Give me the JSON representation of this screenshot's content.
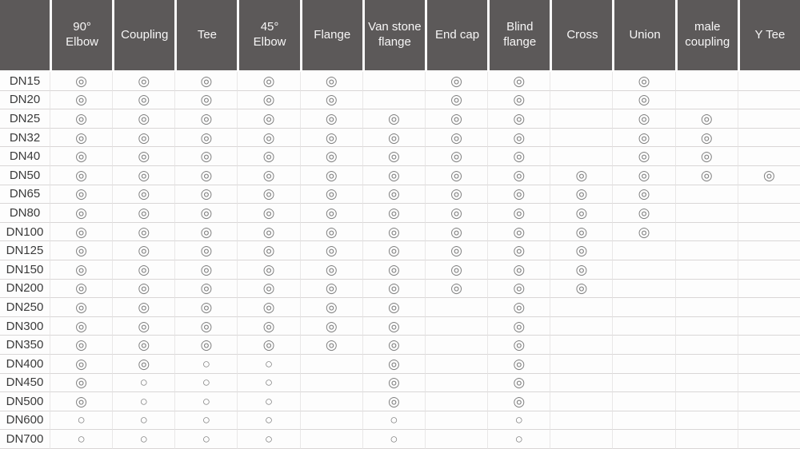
{
  "colors": {
    "header_bg": "#5c5959",
    "header_text": "#f7f6f6",
    "row_text": "#3b3b3b",
    "symbol": "#7e7e7e",
    "grid_line": "#d9d6d6"
  },
  "symbols": {
    "bullseye": "◎",
    "circle": "○",
    "empty": ""
  },
  "chart_data": {
    "type": "table",
    "title": "",
    "header": [
      "",
      "90° Elbow",
      "Coupling",
      "Tee",
      "45° Elbow",
      "Flange",
      "Van stone flange",
      "End cap",
      "Blind flange",
      "Cross",
      "Union",
      "male coupling",
      "Y Tee"
    ],
    "rows": [
      {
        "label": "DN15",
        "cells": [
          "◎",
          "◎",
          "◎",
          "◎",
          "◎",
          "",
          "◎",
          "◎",
          "",
          "◎",
          "",
          ""
        ]
      },
      {
        "label": "DN20",
        "cells": [
          "◎",
          "◎",
          "◎",
          "◎",
          "◎",
          "",
          "◎",
          "◎",
          "",
          "◎",
          "",
          ""
        ]
      },
      {
        "label": "DN25",
        "cells": [
          "◎",
          "◎",
          "◎",
          "◎",
          "◎",
          "◎",
          "◎",
          "◎",
          "",
          "◎",
          "◎",
          ""
        ]
      },
      {
        "label": "DN32",
        "cells": [
          "◎",
          "◎",
          "◎",
          "◎",
          "◎",
          "◎",
          "◎",
          "◎",
          "",
          "◎",
          "◎",
          ""
        ]
      },
      {
        "label": "DN40",
        "cells": [
          "◎",
          "◎",
          "◎",
          "◎",
          "◎",
          "◎",
          "◎",
          "◎",
          "",
          "◎",
          "◎",
          ""
        ]
      },
      {
        "label": "DN50",
        "cells": [
          "◎",
          "◎",
          "◎",
          "◎",
          "◎",
          "◎",
          "◎",
          "◎",
          "◎",
          "◎",
          "◎",
          "◎"
        ]
      },
      {
        "label": "DN65",
        "cells": [
          "◎",
          "◎",
          "◎",
          "◎",
          "◎",
          "◎",
          "◎",
          "◎",
          "◎",
          "◎",
          "",
          ""
        ]
      },
      {
        "label": "DN80",
        "cells": [
          "◎",
          "◎",
          "◎",
          "◎",
          "◎",
          "◎",
          "◎",
          "◎",
          "◎",
          "◎",
          "",
          ""
        ]
      },
      {
        "label": "DN100",
        "cells": [
          "◎",
          "◎",
          "◎",
          "◎",
          "◎",
          "◎",
          "◎",
          "◎",
          "◎",
          "◎",
          "",
          ""
        ]
      },
      {
        "label": "DN125",
        "cells": [
          "◎",
          "◎",
          "◎",
          "◎",
          "◎",
          "◎",
          "◎",
          "◎",
          "◎",
          "",
          "",
          ""
        ]
      },
      {
        "label": "DN150",
        "cells": [
          "◎",
          "◎",
          "◎",
          "◎",
          "◎",
          "◎",
          "◎",
          "◎",
          "◎",
          "",
          "",
          ""
        ]
      },
      {
        "label": "DN200",
        "cells": [
          "◎",
          "◎",
          "◎",
          "◎",
          "◎",
          "◎",
          "◎",
          "◎",
          "◎",
          "",
          "",
          ""
        ]
      },
      {
        "label": "DN250",
        "cells": [
          "◎",
          "◎",
          "◎",
          "◎",
          "◎",
          "◎",
          "",
          "◎",
          "",
          "",
          "",
          ""
        ]
      },
      {
        "label": "DN300",
        "cells": [
          "◎",
          "◎",
          "◎",
          "◎",
          "◎",
          "◎",
          "",
          "◎",
          "",
          "",
          "",
          ""
        ]
      },
      {
        "label": "DN350",
        "cells": [
          "◎",
          "◎",
          "◎",
          "◎",
          "◎",
          "◎",
          "",
          "◎",
          "",
          "",
          "",
          ""
        ]
      },
      {
        "label": "DN400",
        "cells": [
          "◎",
          "◎",
          "○",
          "○",
          "",
          "◎",
          "",
          "◎",
          "",
          "",
          "",
          ""
        ]
      },
      {
        "label": "DN450",
        "cells": [
          "◎",
          "○",
          "○",
          "○",
          "",
          "◎",
          "",
          "◎",
          "",
          "",
          "",
          ""
        ]
      },
      {
        "label": "DN500",
        "cells": [
          "◎",
          "○",
          "○",
          "○",
          "",
          "◎",
          "",
          "◎",
          "",
          "",
          "",
          ""
        ]
      },
      {
        "label": "DN600",
        "cells": [
          "○",
          "○",
          "○",
          "○",
          "",
          "○",
          "",
          "○",
          "",
          "",
          "",
          ""
        ]
      },
      {
        "label": "DN700",
        "cells": [
          "○",
          "○",
          "○",
          "○",
          "",
          "○",
          "",
          "○",
          "",
          "",
          "",
          ""
        ]
      }
    ]
  }
}
